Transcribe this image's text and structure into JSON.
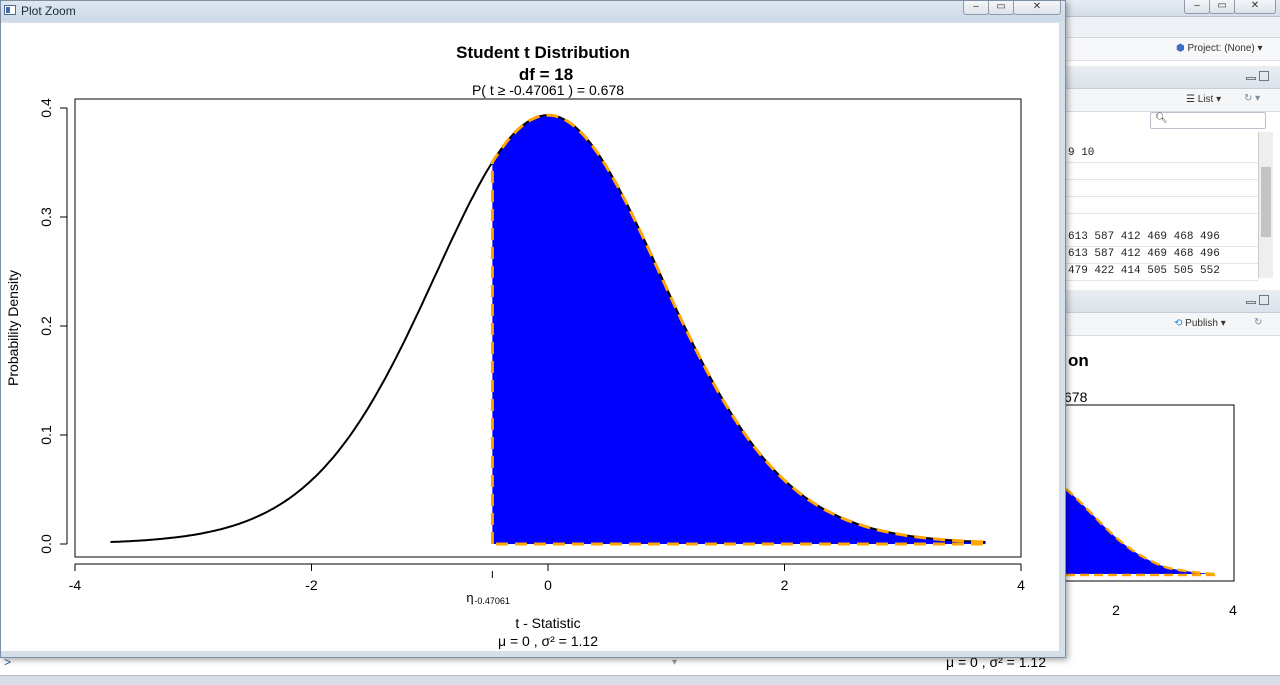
{
  "zoom_window": {
    "title": "Plot Zoom"
  },
  "background": {
    "project_label": "Project: (None)",
    "list_label": "List",
    "publish_label": "Publish",
    "data_rows": [
      "9 10",
      "",
      "",
      "",
      "613 587 412 469 468 496",
      "613 587 412 469 468 496",
      "479 422 414 505 505 552"
    ],
    "thumb_title_fragment": "on",
    "thumb_prob_fragment": "678",
    "thumb_ticks": [
      "2",
      "4"
    ],
    "thumb_params": "μ = 0 , σ² = 1.12"
  },
  "chart_data": {
    "type": "area",
    "title": "Student t Distribution",
    "subtitle": "df  =  18",
    "prob_text": "P(  t  ≥  -0.47061  ) = 0.678",
    "xlabel": "t - Statistic",
    "params_text": "μ =  0 , σ² =  1.12",
    "ylabel": "Probability Density",
    "df": 18,
    "t_value": -0.47061,
    "probability": 0.678,
    "xlim": [
      -4,
      4
    ],
    "ylim": [
      0,
      0.4
    ],
    "x_ticks": [
      -4,
      -2,
      0,
      2,
      4
    ],
    "x_tick_labels": [
      "-4",
      "-2",
      "0",
      "2",
      "4"
    ],
    "y_ticks": [
      0.0,
      0.1,
      0.2,
      0.3,
      0.4
    ],
    "y_tick_labels": [
      "0.0",
      "0.1",
      "0.2",
      "0.3",
      "0.4"
    ],
    "curve_range": [
      -3.7,
      3.7
    ],
    "shaded_from": -0.47061,
    "eta_label": "η",
    "eta_subscript": "-0.47061",
    "colors": {
      "fill": "#0000ff",
      "curve": "#000000",
      "outline": "#ffa500"
    }
  }
}
